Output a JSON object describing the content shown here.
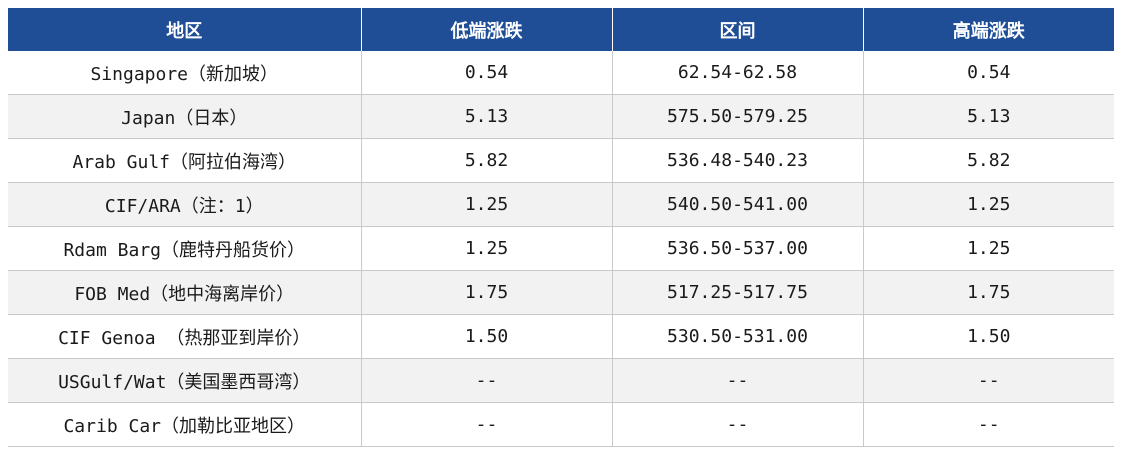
{
  "table": {
    "headers": [
      "地区",
      "低端涨跌",
      "区间",
      "高端涨跌"
    ],
    "rows": [
      [
        "Singapore（新加坡）",
        "0.54",
        "62.54-62.58",
        "0.54"
      ],
      [
        "Japan（日本）",
        "5.13",
        "575.50-579.25",
        "5.13"
      ],
      [
        "Arab Gulf（阿拉伯海湾）",
        "5.82",
        "536.48-540.23",
        "5.82"
      ],
      [
        "CIF/ARA（注：1）",
        "1.25",
        "540.50-541.00",
        "1.25"
      ],
      [
        "Rdam Barg（鹿特丹船货价）",
        "1.25",
        "536.50-537.00",
        "1.25"
      ],
      [
        "FOB Med（地中海离岸价）",
        "1.75",
        "517.25-517.75",
        "1.75"
      ],
      [
        "CIF Genoa （热那亚到岸价）",
        "1.50",
        "530.50-531.00",
        "1.50"
      ],
      [
        "USGulf/Wat（美国墨西哥湾）",
        "--",
        "--",
        "--"
      ],
      [
        "Carib Car（加勒比亚地区）",
        "--",
        "--",
        "--"
      ]
    ]
  },
  "colors": {
    "header_background": "#1f4e96",
    "header_text": "#ffffff",
    "stripe_background": "#f2f2f2",
    "row_background": "#ffffff",
    "grid_line": "#c9c9c9"
  }
}
